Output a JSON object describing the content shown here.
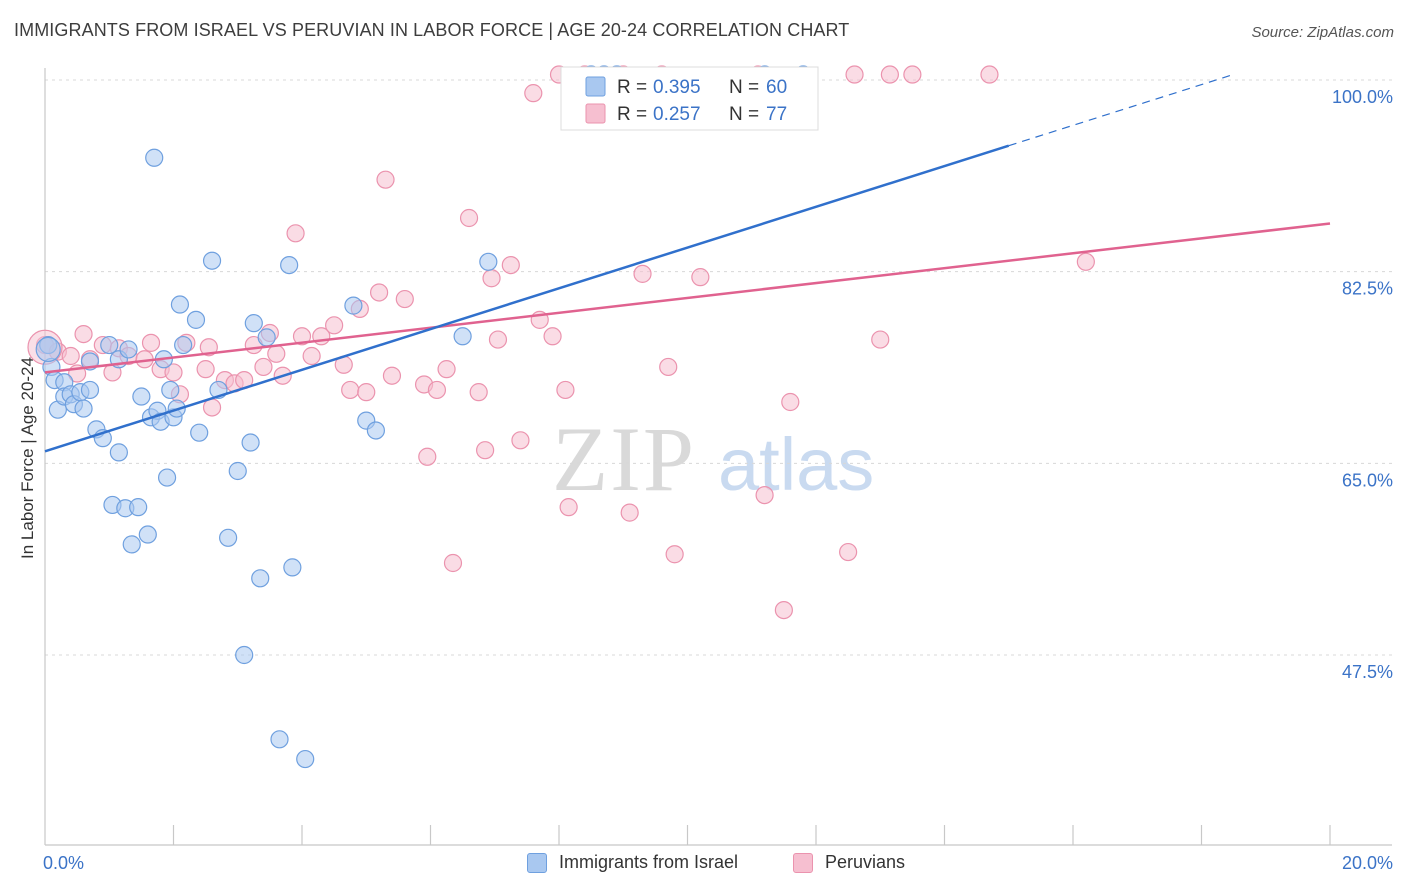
{
  "title": "IMMIGRANTS FROM ISRAEL VS PERUVIAN IN LABOR FORCE | AGE 20-24 CORRELATION CHART",
  "source": "Source: ZipAtlas.com",
  "watermark": {
    "zip": "ZIP",
    "atlas": "atlas"
  },
  "colors": {
    "blue_fill": "#a9c8f0",
    "blue_stroke": "#6fa0df",
    "blue_line": "#3070cc",
    "pink_fill": "#f6bfd0",
    "pink_stroke": "#eb93ae",
    "pink_line": "#e0628f",
    "tick_text": "#3b73c7",
    "grid": "#d8d8d8"
  },
  "legend_box": {
    "rows": [
      {
        "r_label": "R =",
        "r_value": "0.395",
        "n_label": "N =",
        "n_value": "60",
        "series": "israel"
      },
      {
        "r_label": "R =",
        "r_value": "0.257",
        "n_label": "N =",
        "n_value": "77",
        "series": "peruvian"
      }
    ]
  },
  "chart_data": {
    "type": "scatter",
    "title": "IMMIGRANTS FROM ISRAEL VS PERUVIAN IN LABOR FORCE | AGE 20-24 CORRELATION CHART",
    "xlabel": "",
    "ylabel": "In Labor Force | Age 20-24",
    "xlim": [
      0,
      20
    ],
    "ylim": [
      30,
      102
    ],
    "x_tick_labels": [
      "0.0%",
      "20.0%"
    ],
    "y_ticks": [
      47.5,
      65.0,
      82.5,
      100.0
    ],
    "y_tick_labels": [
      "47.5%",
      "65.0%",
      "82.5%",
      "100.0%"
    ],
    "grid": true,
    "legend": [
      "Immigrants from Israel",
      "Peruvians"
    ],
    "series": [
      {
        "name": "Immigrants from Israel",
        "r": 0.395,
        "n": 60,
        "trend": {
          "x0": 0.0,
          "y0": 66.1,
          "x1": 15.0,
          "y1": 94.0,
          "dash_x1": 18.5
        },
        "points": [
          [
            0.05,
            75.8
          ],
          [
            0.1,
            73.8
          ],
          [
            0.15,
            72.6
          ],
          [
            0.2,
            69.9
          ],
          [
            0.3,
            72.4
          ],
          [
            0.3,
            71.1
          ],
          [
            0.4,
            71.3
          ],
          [
            0.45,
            70.4
          ],
          [
            0.55,
            71.5
          ],
          [
            0.6,
            70.0
          ],
          [
            0.7,
            71.7
          ],
          [
            0.7,
            74.3
          ],
          [
            0.8,
            68.1
          ],
          [
            0.9,
            67.3
          ],
          [
            1.0,
            75.8
          ],
          [
            1.05,
            61.2
          ],
          [
            1.15,
            66.0
          ],
          [
            1.15,
            74.5
          ],
          [
            1.25,
            60.9
          ],
          [
            1.3,
            75.4
          ],
          [
            1.35,
            57.6
          ],
          [
            1.45,
            61.0
          ],
          [
            1.5,
            71.1
          ],
          [
            1.6,
            58.5
          ],
          [
            1.65,
            69.2
          ],
          [
            1.7,
            92.9
          ],
          [
            1.75,
            69.8
          ],
          [
            1.8,
            68.8
          ],
          [
            1.85,
            74.5
          ],
          [
            1.9,
            63.7
          ],
          [
            1.95,
            71.7
          ],
          [
            2.0,
            69.2
          ],
          [
            2.05,
            70.0
          ],
          [
            2.1,
            79.5
          ],
          [
            2.15,
            75.8
          ],
          [
            2.35,
            78.1
          ],
          [
            2.4,
            67.8
          ],
          [
            2.6,
            83.5
          ],
          [
            2.7,
            71.7
          ],
          [
            2.85,
            58.2
          ],
          [
            3.0,
            64.3
          ],
          [
            3.1,
            47.5
          ],
          [
            3.2,
            66.9
          ],
          [
            3.25,
            77.8
          ],
          [
            3.35,
            54.5
          ],
          [
            3.45,
            76.5
          ],
          [
            3.65,
            39.8
          ],
          [
            3.8,
            83.1
          ],
          [
            3.85,
            55.5
          ],
          [
            4.05,
            38.0
          ],
          [
            4.8,
            79.4
          ],
          [
            5.0,
            68.9
          ],
          [
            5.15,
            68.0
          ],
          [
            6.5,
            76.6
          ],
          [
            6.9,
            83.4
          ],
          [
            8.5,
            100.5
          ],
          [
            8.7,
            100.5
          ],
          [
            8.9,
            100.5
          ],
          [
            11.2,
            100.5
          ],
          [
            11.8,
            100.5
          ]
        ]
      },
      {
        "name": "Peruvians",
        "r": 0.257,
        "n": 77,
        "trend": {
          "x0": 0.0,
          "y0": 73.3,
          "x1": 20.0,
          "y1": 86.9
        },
        "points": [
          [
            0.0,
            75.8
          ],
          [
            0.2,
            75.2
          ],
          [
            0.4,
            74.8
          ],
          [
            0.5,
            73.2
          ],
          [
            0.6,
            76.8
          ],
          [
            0.7,
            74.5
          ],
          [
            0.9,
            75.8
          ],
          [
            1.05,
            73.3
          ],
          [
            1.15,
            75.5
          ],
          [
            1.3,
            74.8
          ],
          [
            1.55,
            74.5
          ],
          [
            1.65,
            76.0
          ],
          [
            1.8,
            73.6
          ],
          [
            2.0,
            73.3
          ],
          [
            2.1,
            71.3
          ],
          [
            2.2,
            76.0
          ],
          [
            2.5,
            73.6
          ],
          [
            2.55,
            75.6
          ],
          [
            2.6,
            70.1
          ],
          [
            2.8,
            72.6
          ],
          [
            2.95,
            72.3
          ],
          [
            3.1,
            72.6
          ],
          [
            3.25,
            75.8
          ],
          [
            3.4,
            73.8
          ],
          [
            3.5,
            76.9
          ],
          [
            3.9,
            86.0
          ],
          [
            3.6,
            75.0
          ],
          [
            3.7,
            73.0
          ],
          [
            4.0,
            76.6
          ],
          [
            4.15,
            74.8
          ],
          [
            4.3,
            76.6
          ],
          [
            4.5,
            77.6
          ],
          [
            4.65,
            74.0
          ],
          [
            4.75,
            71.7
          ],
          [
            4.9,
            79.1
          ],
          [
            5.0,
            71.5
          ],
          [
            5.2,
            80.6
          ],
          [
            5.3,
            90.9
          ],
          [
            5.4,
            73.0
          ],
          [
            5.6,
            80.0
          ],
          [
            5.9,
            72.2
          ],
          [
            5.95,
            65.6
          ],
          [
            6.1,
            71.7
          ],
          [
            6.25,
            73.6
          ],
          [
            6.35,
            55.9
          ],
          [
            6.6,
            87.4
          ],
          [
            6.75,
            71.5
          ],
          [
            6.85,
            66.2
          ],
          [
            6.95,
            81.9
          ],
          [
            7.05,
            76.3
          ],
          [
            7.25,
            83.1
          ],
          [
            7.4,
            67.1
          ],
          [
            7.6,
            98.8
          ],
          [
            7.7,
            78.1
          ],
          [
            7.9,
            76.6
          ],
          [
            8.0,
            100.5
          ],
          [
            8.1,
            71.7
          ],
          [
            8.15,
            61.0
          ],
          [
            8.4,
            100.5
          ],
          [
            9.0,
            100.5
          ],
          [
            9.1,
            60.5
          ],
          [
            9.3,
            82.3
          ],
          [
            9.6,
            100.5
          ],
          [
            9.7,
            73.8
          ],
          [
            9.8,
            56.7
          ],
          [
            10.2,
            82.0
          ],
          [
            11.1,
            100.5
          ],
          [
            11.2,
            62.1
          ],
          [
            11.5,
            51.6
          ],
          [
            11.6,
            70.6
          ],
          [
            12.5,
            56.9
          ],
          [
            12.6,
            100.5
          ],
          [
            13.0,
            76.3
          ],
          [
            13.15,
            100.5
          ],
          [
            13.5,
            100.5
          ],
          [
            14.7,
            100.5
          ],
          [
            16.2,
            83.4
          ]
        ]
      }
    ]
  }
}
